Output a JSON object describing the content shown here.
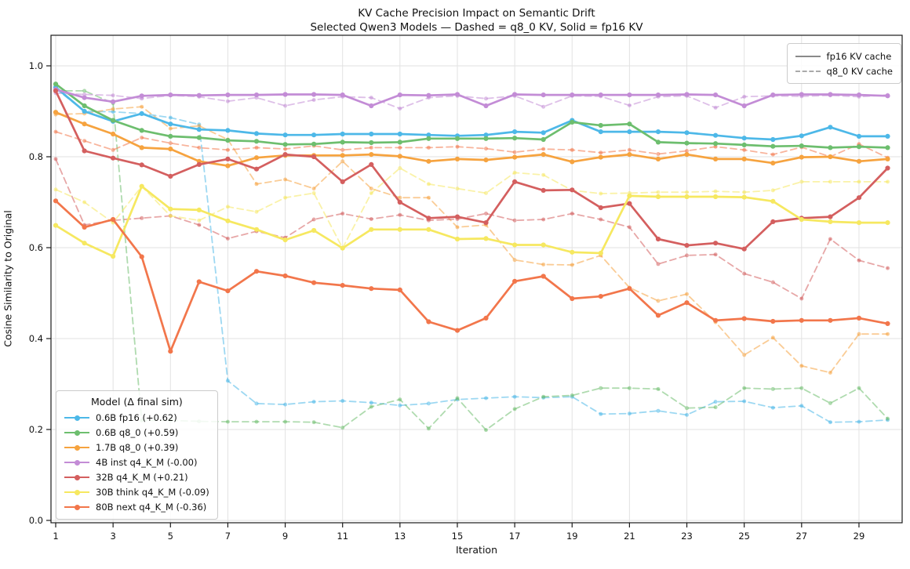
{
  "title": {
    "line1": "KV Cache Precision Impact on Semantic Drift",
    "line2": "Selected Qwen3 Models — Dashed = q8_0 KV, Solid = fp16 KV"
  },
  "axes": {
    "x_label": "Iteration",
    "y_label": "Cosine Similarity to Original",
    "x_tick_labels": [
      1,
      3,
      5,
      7,
      9,
      11,
      13,
      15,
      17,
      19,
      21,
      23,
      25,
      27,
      29
    ],
    "y_tick_labels": [
      "0.0",
      "0.2",
      "0.4",
      "0.6",
      "0.8",
      "1.0"
    ]
  },
  "kv_legend": {
    "items": [
      {
        "label": "fp16 KV cache",
        "style": "solid",
        "color": "#8a8a8a"
      },
      {
        "label": "q8_0 KV cache",
        "style": "dashed",
        "color": "#aaaaaa"
      }
    ]
  },
  "model_legend": {
    "title": "Model (Δ final sim)",
    "items": [
      {
        "label": "0.6B fp16 (+0.62)",
        "color": "#4DB8E8"
      },
      {
        "label": "0.6B q8_0 (+0.59)",
        "color": "#6DBE6E"
      },
      {
        "label": "1.7B q8_0 (+0.39)",
        "color": "#F6A33F"
      },
      {
        "label": "4B inst q4_K_M (-0.00)",
        "color": "#C38CD6"
      },
      {
        "label": "32B q4_K_M (+0.21)",
        "color": "#D45F5F"
      },
      {
        "label": "30B think q4_K_M (-0.09)",
        "color": "#F6E860"
      },
      {
        "label": "80B next q4_K_M (-0.36)",
        "color": "#F2764B"
      }
    ]
  },
  "chart_data": {
    "type": "line",
    "title": "KV Cache Precision Impact on Semantic Drift",
    "subtitle": "Selected Qwen3 Models — Dashed = q8_0 KV, Solid = fp16 KV",
    "xlabel": "Iteration",
    "ylabel": "Cosine Similarity to Original",
    "x": [
      1,
      2,
      3,
      4,
      5,
      6,
      7,
      8,
      9,
      10,
      11,
      12,
      13,
      14,
      15,
      16,
      17,
      18,
      19,
      20,
      21,
      22,
      23,
      24,
      25,
      26,
      27,
      28,
      29,
      30
    ],
    "xlim": [
      0.8,
      30.5
    ],
    "ylim": [
      0.0,
      1.07
    ],
    "grid": true,
    "legend_positions": [
      "upper right",
      "lower left"
    ],
    "series": [
      {
        "name": "0.6B fp16 — fp16 KV",
        "color": "#4DB8E8",
        "style": "solid",
        "values": [
          0.953,
          0.9,
          0.878,
          0.895,
          0.872,
          0.86,
          0.858,
          0.851,
          0.848,
          0.848,
          0.85,
          0.85,
          0.85,
          0.848,
          0.846,
          0.848,
          0.855,
          0.853,
          0.88,
          0.855,
          0.855,
          0.855,
          0.853,
          0.847,
          0.841,
          0.838,
          0.846,
          0.865,
          0.845,
          0.845
        ]
      },
      {
        "name": "0.6B fp16 — q8_0 KV",
        "color": "#4DB8E8",
        "style": "dashed",
        "values": [
          0.95,
          0.9,
          0.899,
          0.895,
          0.886,
          0.871,
          0.307,
          0.257,
          0.255,
          0.261,
          0.263,
          0.259,
          0.253,
          0.257,
          0.266,
          0.269,
          0.272,
          0.27,
          0.272,
          0.234,
          0.235,
          0.241,
          0.232,
          0.261,
          0.262,
          0.248,
          0.252,
          0.216,
          0.217,
          0.221
        ]
      },
      {
        "name": "0.6B q8_0 — fp16 KV",
        "color": "#6DBE6E",
        "style": "solid",
        "values": [
          0.96,
          0.912,
          0.88,
          0.858,
          0.845,
          0.842,
          0.836,
          0.834,
          0.827,
          0.828,
          0.832,
          0.831,
          0.832,
          0.84,
          0.84,
          0.84,
          0.841,
          0.838,
          0.876,
          0.869,
          0.872,
          0.832,
          0.83,
          0.829,
          0.826,
          0.823,
          0.824,
          0.82,
          0.822,
          0.82
        ]
      },
      {
        "name": "0.6B q8_0 — q8_0 KV",
        "color": "#6DBE6E",
        "style": "dashed",
        "values": [
          0.945,
          0.945,
          0.918,
          0.22,
          0.22,
          0.218,
          0.217,
          0.217,
          0.217,
          0.216,
          0.204,
          0.25,
          0.266,
          0.202,
          0.269,
          0.199,
          0.245,
          0.272,
          0.275,
          0.291,
          0.291,
          0.289,
          0.247,
          0.249,
          0.291,
          0.289,
          0.291,
          0.258,
          0.291,
          0.224
        ]
      },
      {
        "name": "1.7B q8_0 — fp16 KV",
        "color": "#F6A33F",
        "style": "solid",
        "values": [
          0.898,
          0.872,
          0.85,
          0.82,
          0.817,
          0.79,
          0.78,
          0.798,
          0.803,
          0.803,
          0.803,
          0.805,
          0.801,
          0.79,
          0.795,
          0.793,
          0.799,
          0.805,
          0.789,
          0.799,
          0.805,
          0.795,
          0.805,
          0.795,
          0.795,
          0.786,
          0.799,
          0.8,
          0.79,
          0.795
        ]
      },
      {
        "name": "1.7B q8_0 — q8_0 KV",
        "color": "#F6A33F",
        "style": "dashed",
        "values": [
          0.893,
          0.895,
          0.905,
          0.91,
          0.862,
          0.868,
          0.838,
          0.74,
          0.75,
          0.73,
          0.79,
          0.73,
          0.71,
          0.71,
          0.645,
          0.65,
          0.573,
          0.563,
          0.562,
          0.583,
          0.512,
          0.483,
          0.498,
          0.436,
          0.364,
          0.402,
          0.34,
          0.325,
          0.41,
          0.41
        ]
      },
      {
        "name": "4B inst q4_K_M — fp16 KV",
        "color": "#C38CD6",
        "style": "solid",
        "values": [
          0.948,
          0.93,
          0.921,
          0.934,
          0.936,
          0.935,
          0.936,
          0.936,
          0.937,
          0.937,
          0.936,
          0.912,
          0.936,
          0.935,
          0.937,
          0.912,
          0.937,
          0.936,
          0.936,
          0.936,
          0.936,
          0.936,
          0.937,
          0.936,
          0.912,
          0.936,
          0.937,
          0.937,
          0.936,
          0.934
        ]
      },
      {
        "name": "4B inst q4_K_M — q8_0 KV",
        "color": "#C38CD6",
        "style": "dashed",
        "values": [
          0.94,
          0.937,
          0.935,
          0.928,
          0.935,
          0.932,
          0.922,
          0.93,
          0.912,
          0.925,
          0.932,
          0.93,
          0.906,
          0.93,
          0.934,
          0.928,
          0.934,
          0.91,
          0.934,
          0.933,
          0.913,
          0.932,
          0.934,
          0.908,
          0.932,
          0.934,
          0.933,
          0.935,
          0.932,
          0.936
        ]
      },
      {
        "name": "32B q4_K_M — fp16 KV",
        "color": "#D45F5F",
        "style": "solid",
        "values": [
          0.945,
          0.813,
          0.797,
          0.782,
          0.757,
          0.783,
          0.795,
          0.773,
          0.805,
          0.8,
          0.745,
          0.783,
          0.7,
          0.665,
          0.668,
          0.655,
          0.745,
          0.726,
          0.727,
          0.688,
          0.697,
          0.619,
          0.605,
          0.61,
          0.597,
          0.657,
          0.665,
          0.668,
          0.71,
          0.775
        ]
      },
      {
        "name": "32B q4_K_M — q8_0 KV",
        "color": "#D45F5F",
        "style": "dashed",
        "values": [
          0.795,
          0.65,
          0.66,
          0.665,
          0.67,
          0.65,
          0.62,
          0.636,
          0.622,
          0.662,
          0.675,
          0.663,
          0.672,
          0.66,
          0.663,
          0.675,
          0.66,
          0.662,
          0.675,
          0.662,
          0.645,
          0.564,
          0.583,
          0.585,
          0.543,
          0.524,
          0.488,
          0.619,
          0.572,
          0.555
        ]
      },
      {
        "name": "30B think q4_K_M — fp16 KV",
        "color": "#F6E860",
        "style": "solid",
        "values": [
          0.649,
          0.61,
          0.581,
          0.735,
          0.685,
          0.683,
          0.659,
          0.64,
          0.617,
          0.638,
          0.599,
          0.64,
          0.64,
          0.64,
          0.619,
          0.62,
          0.606,
          0.606,
          0.59,
          0.588,
          0.714,
          0.712,
          0.712,
          0.712,
          0.711,
          0.702,
          0.662,
          0.657,
          0.655,
          0.655
        ]
      },
      {
        "name": "30B think q4_K_M — q8_0 KV",
        "color": "#F6E860",
        "style": "dashed",
        "values": [
          0.728,
          0.7,
          0.655,
          0.735,
          0.67,
          0.66,
          0.69,
          0.679,
          0.71,
          0.72,
          0.599,
          0.72,
          0.775,
          0.74,
          0.73,
          0.72,
          0.765,
          0.76,
          0.726,
          0.719,
          0.72,
          0.722,
          0.722,
          0.724,
          0.722,
          0.726,
          0.745,
          0.745,
          0.745,
          0.745
        ]
      },
      {
        "name": "80B next q4_K_M — fp16 KV",
        "color": "#F2764B",
        "style": "solid",
        "values": [
          0.703,
          0.645,
          0.662,
          0.58,
          0.372,
          0.525,
          0.505,
          0.548,
          0.538,
          0.523,
          0.517,
          0.51,
          0.507,
          0.437,
          0.418,
          0.445,
          0.526,
          0.537,
          0.488,
          0.493,
          0.51,
          0.451,
          0.479,
          0.44,
          0.444,
          0.438,
          0.44,
          0.44,
          0.445,
          0.433
        ]
      },
      {
        "name": "80B next q4_K_M — q8_0 KV",
        "color": "#F2764B",
        "style": "dashed",
        "values": [
          0.855,
          0.835,
          0.815,
          0.842,
          0.83,
          0.82,
          0.815,
          0.82,
          0.817,
          0.824,
          0.815,
          0.82,
          0.82,
          0.82,
          0.822,
          0.818,
          0.81,
          0.817,
          0.815,
          0.809,
          0.815,
          0.806,
          0.813,
          0.822,
          0.815,
          0.805,
          0.821,
          0.8,
          0.828,
          0.798
        ]
      }
    ]
  }
}
